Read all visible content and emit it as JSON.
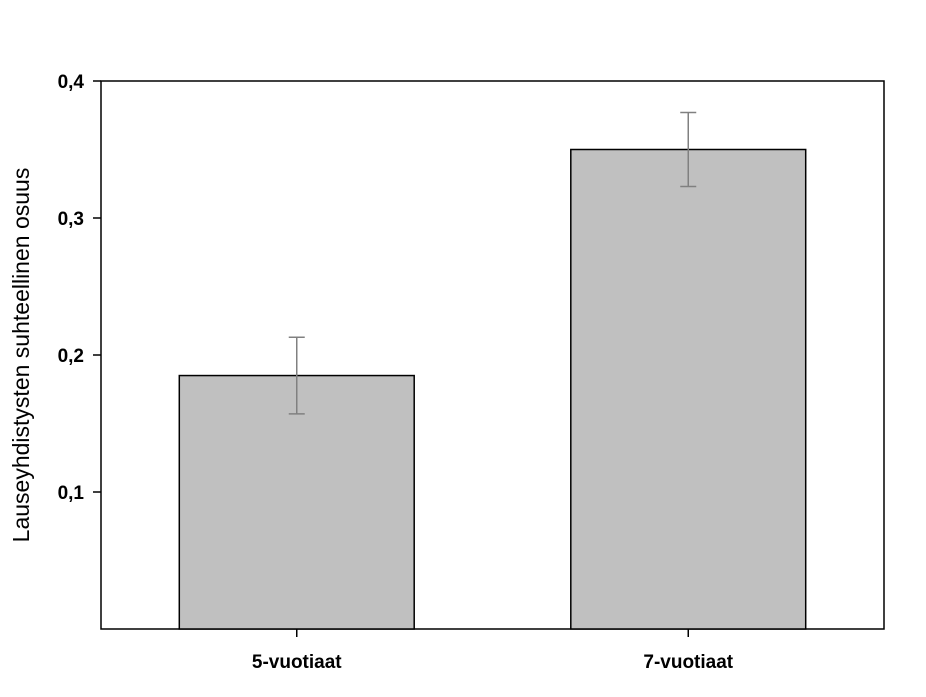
{
  "chart_data": {
    "type": "bar",
    "categories": [
      "5-vuotiaat",
      "7-vuotiaat"
    ],
    "values": [
      0.185,
      0.35
    ],
    "error": [
      0.028,
      0.027
    ],
    "title": "",
    "xlabel": "",
    "ylabel": "Lauseyhdistysten suhteellinen osuus",
    "ylim": [
      0,
      0.4
    ],
    "yticks": [
      0.1,
      0.2,
      0.3,
      0.4
    ],
    "ytick_labels": [
      "0,1",
      "0,2",
      "0,3",
      "0,4"
    ],
    "grid": false,
    "legend": "none",
    "colors": {
      "bar_fill": "#c0c0c0",
      "bar_stroke": "#000000",
      "error_bar": "#808080",
      "axis": "#000000"
    }
  }
}
